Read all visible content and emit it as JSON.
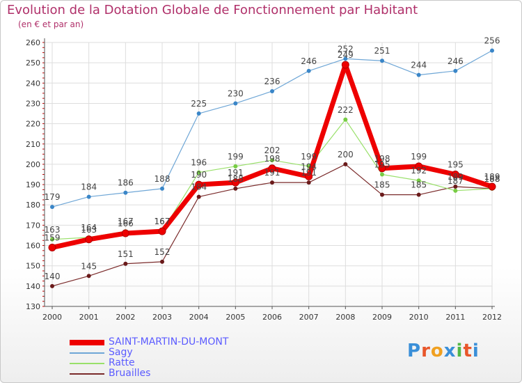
{
  "header": {
    "title": "Evolution de la Dotation Globale de Fonctionnement par Habitant",
    "subtitle": "(en € et par an)"
  },
  "logo": {
    "text": "Proxiti",
    "letter_colors": [
      "#3a8fd8",
      "#e8562a",
      "#f0a020",
      "#3a8fd8",
      "#52b848",
      "#e8562a",
      "#3a8fd8"
    ]
  },
  "colors": {
    "axis": "#555555",
    "grid": "#dddddd",
    "tick_text": "#333333",
    "label_text": "#444444",
    "dot_tick": "#c00000"
  },
  "chart_data": {
    "type": "line",
    "title": "Evolution de la Dotation Globale de Fonctionnement par Habitant",
    "subtitle": "(en € et par an)",
    "xlabel": "",
    "ylabel": "",
    "categories": [
      "2000",
      "2001",
      "2002",
      "2003",
      "2004",
      "2005",
      "2006",
      "2007",
      "2008",
      "2009",
      "2010",
      "2011",
      "2012"
    ],
    "ylim": [
      130,
      260
    ],
    "yticks": [
      130,
      140,
      150,
      160,
      170,
      180,
      190,
      200,
      210,
      220,
      230,
      240,
      250,
      260
    ],
    "grid": true,
    "legend_position": "bottom-left",
    "series": [
      {
        "name": "SAINT-MARTIN-DU-MONT",
        "color": "#ee0000",
        "marker": "#ee0000",
        "width": 7,
        "values": [
          159,
          163,
          166,
          167,
          190,
          191,
          198,
          194,
          249,
          198,
          199,
          195,
          189
        ],
        "labels": [
          "159",
          "163",
          "166",
          "167",
          "190",
          "191",
          "198",
          "194",
          "249",
          "198",
          "199",
          "195",
          "189"
        ]
      },
      {
        "name": "Sagy",
        "color": "#6ea6d6",
        "marker": "#3a86c8",
        "width": 1.2,
        "values": [
          179,
          184,
          186,
          188,
          225,
          230,
          236,
          246,
          252,
          251,
          244,
          246,
          256
        ],
        "labels": [
          "179",
          "184",
          "186",
          "188",
          "225",
          "230",
          "236",
          "246",
          "252",
          "251",
          "244",
          "246",
          "256"
        ]
      },
      {
        "name": "Ratte",
        "color": "#99e06a",
        "marker": "#77cc44",
        "width": 1.2,
        "values": [
          163,
          164,
          167,
          167,
          196,
          199,
          202,
          199,
          222,
          195,
          192,
          187,
          188
        ],
        "labels": [
          "163",
          "164",
          "167",
          "167",
          "196",
          "199",
          "202",
          "199",
          "222",
          "195",
          "192",
          "187",
          "188"
        ]
      },
      {
        "name": "Bruailles",
        "color": "#7a2a2a",
        "marker": "#6a1a1a",
        "width": 1.2,
        "values": [
          140,
          145,
          151,
          152,
          184,
          188,
          191,
          191,
          200,
          185,
          185,
          189,
          188
        ],
        "labels": [
          "140",
          "145",
          "151",
          "152",
          "184",
          "188",
          "191",
          "191",
          "200",
          "185",
          "185",
          "189",
          "188"
        ]
      }
    ]
  }
}
